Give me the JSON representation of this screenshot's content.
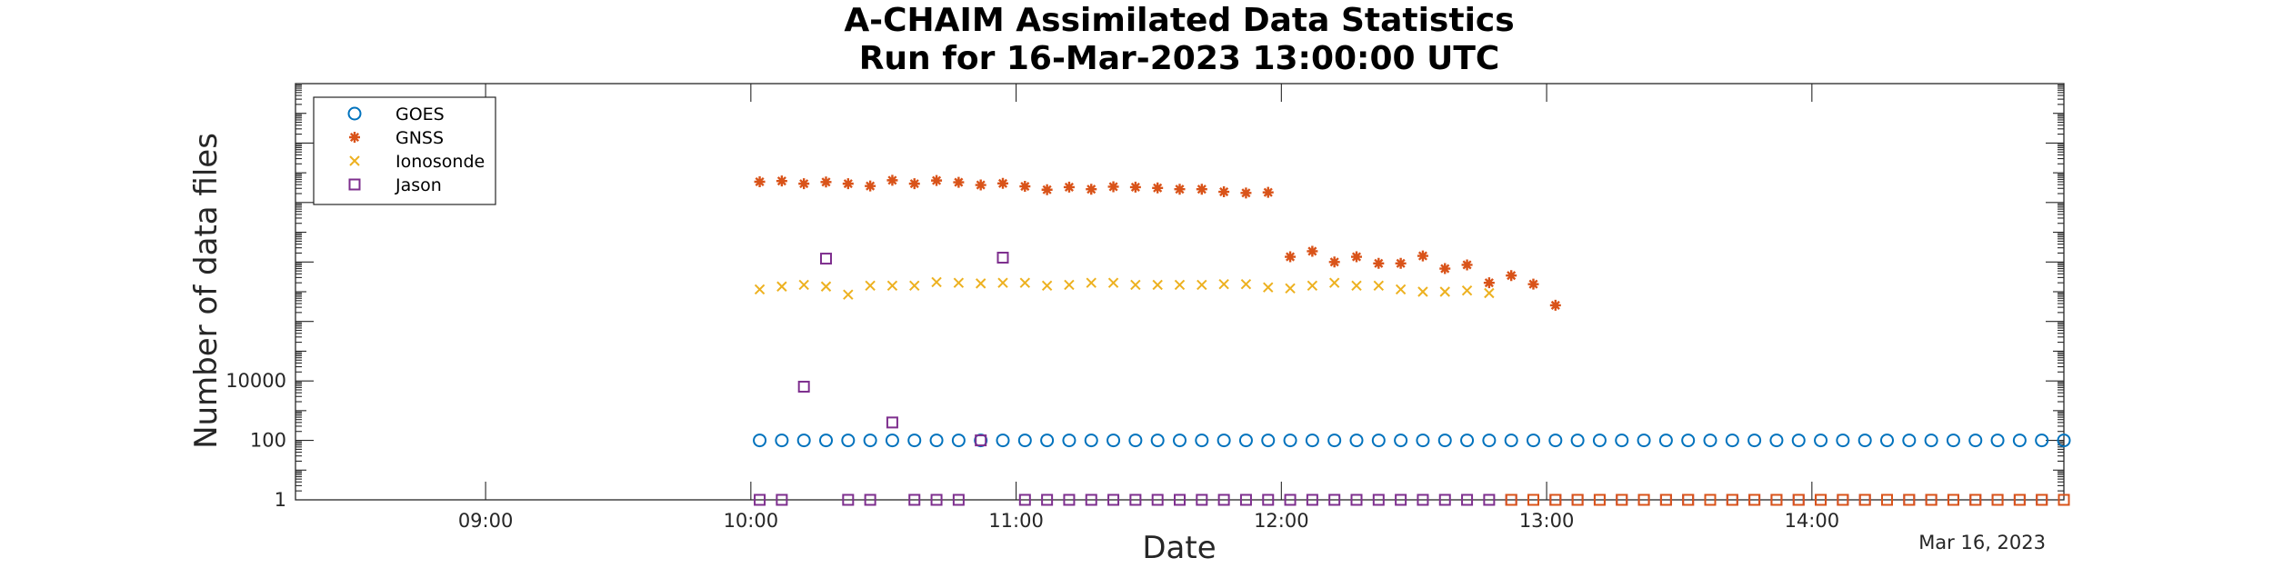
{
  "chart_data": {
    "type": "scatter",
    "title": [
      "A-CHAIM Assimilated Data Statistics",
      "Run for 16-Mar-2023 13:00:00 UTC"
    ],
    "xlabel": "Date",
    "ylabel": "Number of data files",
    "x_date_label": "Mar 16, 2023",
    "x_axis": {
      "range": [
        "08:17",
        "14:57"
      ],
      "ticks": [
        "09:00",
        "10:00",
        "11:00",
        "12:00",
        "13:00",
        "14:00"
      ]
    },
    "y_axis": {
      "scale": "log",
      "range": [
        1,
        100000000000000
      ],
      "tick_labels": [
        {
          "value": 1,
          "label": "1"
        },
        {
          "value": 100,
          "label": "100"
        },
        {
          "value": 10000,
          "label": "10000"
        }
      ]
    },
    "grid": false,
    "legend_position": "top-left",
    "series": [
      {
        "name": "GOES",
        "marker": "circle",
        "color": "#0072BD",
        "x": [
          "10:02",
          "10:07",
          "10:12",
          "10:17",
          "10:22",
          "10:27",
          "10:32",
          "10:37",
          "10:42",
          "10:47",
          "10:52",
          "10:57",
          "11:02",
          "11:07",
          "11:12",
          "11:17",
          "11:22",
          "11:27",
          "11:32",
          "11:37",
          "11:42",
          "11:47",
          "11:52",
          "11:57",
          "12:02",
          "12:07",
          "12:12",
          "12:17",
          "12:22",
          "12:27",
          "12:32",
          "12:37",
          "12:42",
          "12:47",
          "12:52",
          "12:57",
          "13:02",
          "13:07",
          "13:12",
          "13:17",
          "13:22",
          "13:27",
          "13:32",
          "13:37",
          "13:42",
          "13:47",
          "13:52",
          "13:57",
          "14:02",
          "14:07",
          "14:12",
          "14:17",
          "14:22",
          "14:27",
          "14:32",
          "14:37",
          "14:42",
          "14:47",
          "14:52",
          "14:57"
        ],
        "y": [
          100,
          100,
          100,
          100,
          100,
          100,
          100,
          100,
          100,
          100,
          100,
          100,
          100,
          100,
          100,
          100,
          100,
          100,
          100,
          100,
          100,
          100,
          100,
          100,
          100,
          100,
          100,
          100,
          100,
          100,
          100,
          100,
          100,
          100,
          100,
          100,
          100,
          100,
          100,
          100,
          100,
          100,
          100,
          100,
          100,
          100,
          100,
          100,
          100,
          100,
          100,
          100,
          100,
          100,
          100,
          100,
          100,
          100,
          100,
          100
        ]
      },
      {
        "name": "GNSS",
        "marker": "asterisk",
        "color": "#D95319",
        "x": [
          "10:02",
          "10:07",
          "10:12",
          "10:17",
          "10:22",
          "10:27",
          "10:32",
          "10:37",
          "10:42",
          "10:47",
          "10:52",
          "10:57",
          "11:02",
          "11:07",
          "11:12",
          "11:17",
          "11:22",
          "11:27",
          "11:32",
          "11:37",
          "11:42",
          "11:47",
          "11:52",
          "11:57",
          "12:02",
          "12:07",
          "12:12",
          "12:17",
          "12:22",
          "12:27",
          "12:32",
          "12:37",
          "12:42",
          "12:47",
          "12:52",
          "12:57",
          "13:02"
        ],
        "y": [
          50000000000.0,
          53000000000.0,
          43000000000.0,
          49000000000.0,
          43000000000.0,
          36000000000.0,
          56000000000.0,
          43000000000.0,
          55000000000.0,
          48000000000.0,
          39000000000.0,
          44000000000.0,
          35000000000.0,
          27000000000.0,
          33000000000.0,
          28000000000.0,
          34000000000.0,
          33000000000.0,
          31000000000.0,
          28000000000.0,
          28000000000.0,
          23000000000.0,
          21000000000.0,
          22000000000.0,
          150000000.0,
          230000000.0,
          100000000.0,
          150000000.0,
          90000000.0,
          90000000.0,
          160000000.0,
          60000000.0,
          80000000.0,
          20000000.0,
          35000000.0,
          18000000.0,
          3500000.0
        ]
      },
      {
        "name": "Ionosonde",
        "marker": "x",
        "color": "#EDB120",
        "x": [
          "10:02",
          "10:07",
          "10:12",
          "10:17",
          "10:22",
          "10:27",
          "10:32",
          "10:37",
          "10:42",
          "10:47",
          "10:52",
          "10:57",
          "11:02",
          "11:07",
          "11:12",
          "11:17",
          "11:22",
          "11:27",
          "11:32",
          "11:37",
          "11:42",
          "11:47",
          "11:52",
          "11:57",
          "12:02",
          "12:07",
          "12:12",
          "12:17",
          "12:22",
          "12:27",
          "12:32",
          "12:37",
          "12:42",
          "12:47"
        ],
        "y": [
          12000000.0,
          15000000.0,
          17000000.0,
          15000000.0,
          8000000.0,
          16000000.0,
          16000000.0,
          16000000.0,
          21000000.0,
          20000000.0,
          19000000.0,
          20000000.0,
          20000000.0,
          16000000.0,
          17000000.0,
          20000000.0,
          20000000.0,
          17000000.0,
          17000000.0,
          17000000.0,
          17000000.0,
          18000000.0,
          18000000.0,
          14000000.0,
          13000000.0,
          16000000.0,
          20000000.0,
          16000000.0,
          16000000.0,
          12000000.0,
          10000000.0,
          10000000.0,
          11000000.0,
          9000000.0
        ]
      },
      {
        "name": "Jason",
        "marker": "square",
        "color": "#7E2F8E",
        "x": [
          "10:02",
          "10:07",
          "10:12",
          "10:17",
          "10:22",
          "10:27",
          "10:32",
          "10:37",
          "10:42",
          "10:47",
          "10:52",
          "10:57",
          "11:02",
          "11:07",
          "11:12",
          "11:17",
          "11:22",
          "11:27",
          "11:32",
          "11:37",
          "11:42",
          "11:47",
          "11:52",
          "11:57",
          "12:02",
          "12:07",
          "12:12",
          "12:17",
          "12:22",
          "12:27",
          "12:32",
          "12:37",
          "12:42",
          "12:47",
          "12:52",
          "12:57",
          "13:02",
          "13:07",
          "13:12",
          "13:17",
          "13:22",
          "13:27",
          "13:32",
          "13:37",
          "13:42",
          "13:47",
          "13:52",
          "13:57",
          "14:02",
          "14:07",
          "14:12",
          "14:17",
          "14:22",
          "14:27",
          "14:32",
          "14:37",
          "14:42",
          "14:47",
          "14:52",
          "14:57"
        ],
        "y": [
          1,
          1,
          6400,
          130000000.0,
          1,
          1,
          400,
          1,
          1,
          1,
          100,
          140000000.0,
          1,
          1,
          1,
          1,
          1,
          1,
          1,
          1,
          1,
          1,
          1,
          1,
          1,
          1,
          1,
          1,
          1,
          1,
          1,
          1,
          1,
          1,
          1,
          1,
          1,
          1,
          1,
          1,
          1,
          1,
          1,
          1,
          1,
          1,
          1,
          1,
          1,
          1,
          1,
          1,
          1,
          1,
          1,
          1,
          1,
          1,
          1,
          1
        ]
      },
      {
        "name": "",
        "marker": "square",
        "color": "#D95319",
        "x": [
          "12:52",
          "12:57",
          "13:02",
          "13:07",
          "13:12",
          "13:17",
          "13:22",
          "13:27",
          "13:32",
          "13:37",
          "13:42",
          "13:47",
          "13:52",
          "13:57",
          "14:02",
          "14:07",
          "14:12",
          "14:17",
          "14:22",
          "14:27",
          "14:32",
          "14:37",
          "14:42",
          "14:47",
          "14:52",
          "14:57"
        ],
        "y": [
          1,
          1,
          1,
          1,
          1,
          1,
          1,
          1,
          1,
          1,
          1,
          1,
          1,
          1,
          1,
          1,
          1,
          1,
          1,
          1,
          1,
          1,
          1,
          1,
          1,
          1
        ]
      }
    ]
  }
}
